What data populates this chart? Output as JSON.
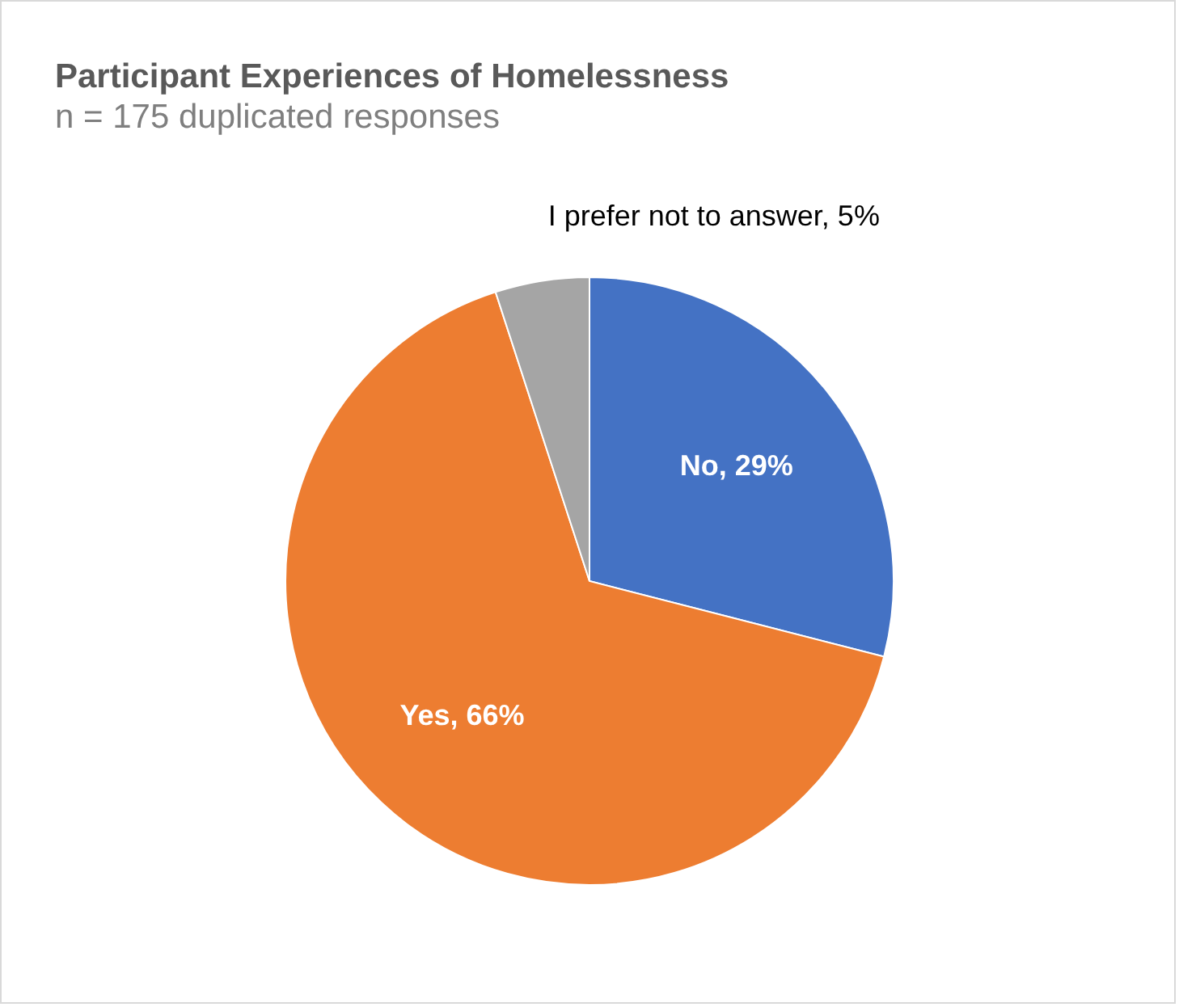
{
  "chart_data": {
    "type": "pie",
    "title": "Participant Experiences of Homelessness",
    "subtitle": "n = 175 duplicated responses",
    "categories": [
      "No",
      "Yes",
      "I prefer not to answer"
    ],
    "values": [
      29,
      66,
      5
    ],
    "colors": [
      "#4472c4",
      "#ed7d31",
      "#a5a5a5"
    ],
    "data_labels": true,
    "value_labels": [
      "29%",
      "66%",
      "5%"
    ],
    "legend": false
  }
}
